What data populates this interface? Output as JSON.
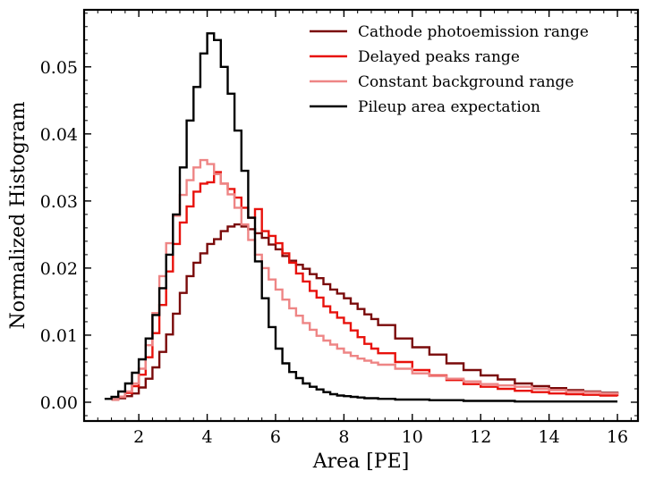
{
  "chart_data": {
    "type": "line",
    "title": "",
    "xlabel": "Area [PE]",
    "ylabel": "Normalized Histogram",
    "xlim": [
      0.4,
      16.6
    ],
    "ylim": [
      -0.0028,
      0.0585
    ],
    "xticks": [
      2,
      4,
      6,
      8,
      10,
      12,
      14,
      16
    ],
    "xtick_labels": [
      "2",
      "4",
      "6",
      "8",
      "10",
      "12",
      "14",
      "16"
    ],
    "yticks": [
      0.0,
      0.01,
      0.02,
      0.03,
      0.04,
      0.05
    ],
    "ytick_labels": [
      "0.00",
      "0.01",
      "0.02",
      "0.03",
      "0.04",
      "0.05"
    ],
    "grid": false,
    "legend_position": "top-right",
    "series": [
      {
        "name": "Cathode photoemission range",
        "color": "#7a0a0a",
        "style": "step",
        "x": [
          1.2,
          1.4,
          1.6,
          1.8,
          2.0,
          2.2,
          2.4,
          2.6,
          2.8,
          3.0,
          3.2,
          3.4,
          3.6,
          3.8,
          4.0,
          4.2,
          4.4,
          4.6,
          4.8,
          5.0,
          5.2,
          5.4,
          5.6,
          5.8,
          6.0,
          6.2,
          6.4,
          6.6,
          6.8,
          7.0,
          7.2,
          7.4,
          7.6,
          7.8,
          8.0,
          8.2,
          8.4,
          8.6,
          8.8,
          9.0,
          9.5,
          10.0,
          10.5,
          11.0,
          11.5,
          12.0,
          12.5,
          13.0,
          13.5,
          14.0,
          14.5,
          15.0,
          15.5,
          16.0
        ],
        "y": [
          0.0004,
          0.0006,
          0.0009,
          0.0013,
          0.0022,
          0.0035,
          0.0052,
          0.0075,
          0.0101,
          0.0132,
          0.0163,
          0.0188,
          0.0208,
          0.0222,
          0.0236,
          0.0243,
          0.0255,
          0.0262,
          0.0265,
          0.0262,
          0.0258,
          0.0252,
          0.0245,
          0.0235,
          0.0228,
          0.0218,
          0.0211,
          0.0205,
          0.0199,
          0.0191,
          0.0185,
          0.0176,
          0.0168,
          0.0162,
          0.0155,
          0.0147,
          0.0139,
          0.0131,
          0.0124,
          0.0115,
          0.0095,
          0.0082,
          0.0071,
          0.0058,
          0.0048,
          0.004,
          0.0034,
          0.0028,
          0.0024,
          0.0021,
          0.0018,
          0.0016,
          0.0014,
          0.0012
        ]
      },
      {
        "name": "Delayed peaks range",
        "color": "#e8120c",
        "style": "step",
        "x": [
          1.2,
          1.4,
          1.6,
          1.8,
          2.0,
          2.2,
          2.4,
          2.6,
          2.8,
          3.0,
          3.2,
          3.4,
          3.6,
          3.8,
          4.0,
          4.2,
          4.4,
          4.6,
          4.8,
          5.0,
          5.2,
          5.4,
          5.6,
          5.8,
          6.0,
          6.2,
          6.4,
          6.6,
          6.8,
          7.0,
          7.2,
          7.4,
          7.6,
          7.8,
          8.0,
          8.2,
          8.4,
          8.6,
          8.8,
          9.0,
          9.5,
          10.0,
          10.5,
          11.0,
          11.5,
          12.0,
          12.5,
          13.0,
          13.5,
          14.0,
          14.5,
          15.0,
          15.5,
          16.0
        ],
        "y": [
          0.0004,
          0.0008,
          0.0014,
          0.0024,
          0.0041,
          0.0067,
          0.0103,
          0.0145,
          0.0195,
          0.0236,
          0.0268,
          0.0292,
          0.0314,
          0.0326,
          0.0328,
          0.0343,
          0.0326,
          0.0318,
          0.0305,
          0.029,
          0.0275,
          0.0288,
          0.0255,
          0.0248,
          0.0237,
          0.0222,
          0.0208,
          0.0192,
          0.018,
          0.0166,
          0.0156,
          0.0143,
          0.0134,
          0.0126,
          0.0118,
          0.0107,
          0.0097,
          0.0087,
          0.008,
          0.0073,
          0.006,
          0.0048,
          0.004,
          0.0033,
          0.0027,
          0.0023,
          0.002,
          0.0017,
          0.0015,
          0.0013,
          0.0012,
          0.0011,
          0.001,
          0.0009
        ]
      },
      {
        "name": "Constant background range",
        "color": "#ee8585",
        "style": "step",
        "x": [
          1.2,
          1.4,
          1.6,
          1.8,
          2.0,
          2.2,
          2.4,
          2.6,
          2.8,
          3.0,
          3.2,
          3.4,
          3.6,
          3.8,
          4.0,
          4.2,
          4.4,
          4.6,
          4.8,
          5.0,
          5.2,
          5.4,
          5.6,
          5.8,
          6.0,
          6.2,
          6.4,
          6.6,
          6.8,
          7.0,
          7.2,
          7.4,
          7.6,
          7.8,
          8.0,
          8.2,
          8.4,
          8.6,
          8.8,
          9.0,
          9.5,
          10.0,
          10.5,
          11.0,
          11.5,
          12.0,
          12.5,
          13.0,
          13.5,
          14.0,
          14.5,
          15.0,
          15.5,
          16.0
        ],
        "y": [
          0.0004,
          0.0008,
          0.0016,
          0.0028,
          0.005,
          0.0085,
          0.0133,
          0.0188,
          0.0237,
          0.0278,
          0.0309,
          0.0331,
          0.035,
          0.0361,
          0.0355,
          0.034,
          0.0326,
          0.031,
          0.029,
          0.0265,
          0.0242,
          0.022,
          0.02,
          0.0183,
          0.0168,
          0.0153,
          0.014,
          0.0129,
          0.0118,
          0.0108,
          0.0099,
          0.0092,
          0.0086,
          0.008,
          0.0074,
          0.0069,
          0.0065,
          0.0062,
          0.0059,
          0.0056,
          0.005,
          0.0043,
          0.0039,
          0.0035,
          0.0031,
          0.0027,
          0.0025,
          0.0023,
          0.002,
          0.0018,
          0.0016,
          0.0015,
          0.0013,
          0.0012
        ]
      },
      {
        "name": "Pileup area expectation",
        "color": "#000000",
        "style": "step",
        "x": [
          1.0,
          1.2,
          1.4,
          1.6,
          1.8,
          2.0,
          2.2,
          2.4,
          2.6,
          2.8,
          3.0,
          3.2,
          3.4,
          3.6,
          3.8,
          4.0,
          4.2,
          4.4,
          4.6,
          4.8,
          5.0,
          5.2,
          5.4,
          5.6,
          5.8,
          6.0,
          6.2,
          6.4,
          6.6,
          6.8,
          7.0,
          7.2,
          7.4,
          7.6,
          7.8,
          8.0,
          8.2,
          8.4,
          8.6,
          8.8,
          9.0,
          9.5,
          10.0,
          10.5,
          11.0,
          11.5,
          12.0,
          12.5,
          13.0,
          13.5,
          14.0,
          14.5,
          15.0,
          15.5,
          16.0
        ],
        "y": [
          0.0005,
          0.0008,
          0.0016,
          0.0028,
          0.0044,
          0.0064,
          0.0095,
          0.013,
          0.017,
          0.022,
          0.028,
          0.035,
          0.042,
          0.047,
          0.052,
          0.055,
          0.054,
          0.05,
          0.046,
          0.0405,
          0.0345,
          0.0275,
          0.021,
          0.0155,
          0.0112,
          0.008,
          0.0058,
          0.0045,
          0.0036,
          0.0028,
          0.0023,
          0.0019,
          0.0015,
          0.0012,
          0.001,
          0.0009,
          0.0008,
          0.0007,
          0.0006,
          0.0006,
          0.0005,
          0.0004,
          0.0004,
          0.0003,
          0.0003,
          0.0002,
          0.0002,
          0.0002,
          0.0001,
          0.0001,
          0.0001,
          0.0001,
          0.0001,
          0.0001,
          0.0001
        ]
      }
    ]
  }
}
